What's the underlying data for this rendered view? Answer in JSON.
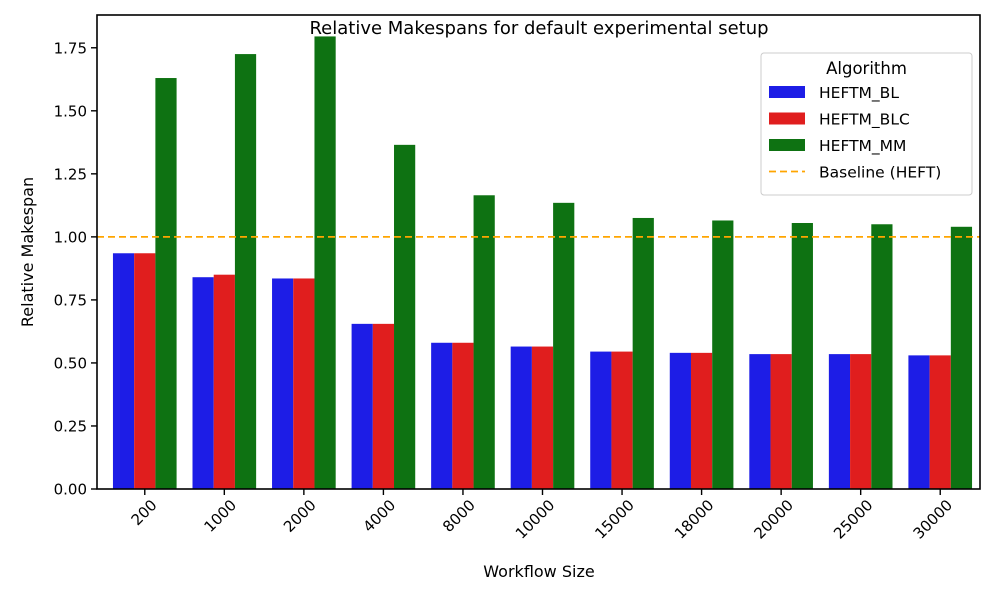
{
  "chart_data": {
    "type": "bar",
    "title": "Relative Makespans for default experimental setup",
    "xlabel": "Workflow Size",
    "ylabel": "Relative Makespan",
    "ylim": [
      0,
      1.88
    ],
    "yticks": [
      0.0,
      0.25,
      0.5,
      0.75,
      1.0,
      1.25,
      1.5,
      1.75
    ],
    "ytick_labels": [
      "0.00",
      "0.25",
      "0.50",
      "0.75",
      "1.00",
      "1.25",
      "1.50",
      "1.75"
    ],
    "categories": [
      "200",
      "1000",
      "2000",
      "4000",
      "8000",
      "10000",
      "15000",
      "18000",
      "20000",
      "25000",
      "30000"
    ],
    "series": [
      {
        "name": "HEFTM_BL",
        "color": "#1d1de6",
        "values": [
          0.935,
          0.84,
          0.835,
          0.655,
          0.58,
          0.565,
          0.545,
          0.54,
          0.535,
          0.535,
          0.53
        ]
      },
      {
        "name": "HEFTM_BLC",
        "color": "#e01e1e",
        "values": [
          0.935,
          0.85,
          0.835,
          0.655,
          0.58,
          0.565,
          0.545,
          0.54,
          0.535,
          0.535,
          0.53
        ]
      },
      {
        "name": "HEFTM_MM",
        "color": "#0e7212",
        "values": [
          1.63,
          1.725,
          1.795,
          1.365,
          1.165,
          1.135,
          1.075,
          1.065,
          1.055,
          1.05,
          1.04
        ]
      }
    ],
    "baseline": {
      "name": "Baseline (HEFT)",
      "value": 1.0,
      "color": "#ffa500"
    },
    "legend": {
      "title": "Algorithm",
      "placement": "top-right"
    },
    "grid": false
  }
}
